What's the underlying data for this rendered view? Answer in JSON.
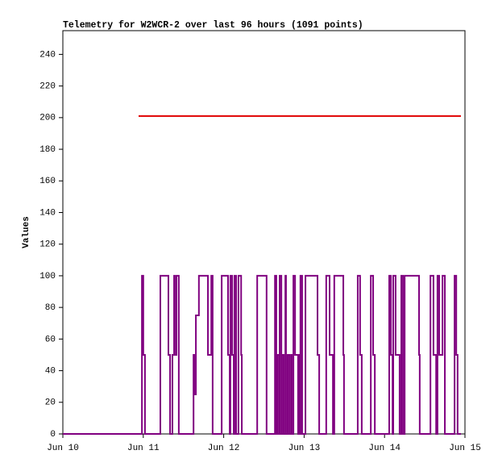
{
  "chart_data": {
    "type": "line",
    "step": "post",
    "title": "Telemetry for W2WCR-2 over last 96 hours (1091 points)",
    "y_label": "Values",
    "xlim": [
      0,
      120
    ],
    "xticks": [
      {
        "value": 0,
        "label": "Jun 10"
      },
      {
        "value": 24,
        "label": "Jun 11"
      },
      {
        "value": 48,
        "label": "Jun 12"
      },
      {
        "value": 72,
        "label": "Jun 13"
      },
      {
        "value": 96,
        "label": "Jun 14"
      },
      {
        "value": 120,
        "label": "Jun 15"
      }
    ],
    "ylim": [
      0,
      255
    ],
    "yticks": [
      0,
      20,
      40,
      60,
      80,
      100,
      120,
      140,
      160,
      180,
      200,
      220,
      240
    ],
    "series": [
      {
        "color": "#e00000",
        "x": [
          22.6,
          118.8
        ],
        "values": [
          201,
          201
        ]
      },
      {
        "color": "#800080",
        "x": [
          0,
          22.6,
          23.6,
          24.0,
          24.5,
          29.1,
          31.5,
          32.0,
          32.7,
          33.2,
          33.4,
          33.9,
          34.6,
          39.0,
          39.2,
          39.7,
          40.6,
          43.3,
          44.3,
          44.7,
          47.4,
          49.3,
          49.8,
          50.0,
          50.5,
          51.0,
          51.2,
          51.7,
          52.4,
          53.2,
          53.4,
          58.0,
          60.8,
          63.3,
          63.7,
          64.0,
          64.5,
          64.7,
          65.2,
          65.4,
          65.9,
          66.4,
          66.6,
          67.1,
          67.6,
          68.1,
          68.3,
          68.8,
          69.3,
          70.2,
          70.5,
          70.7,
          70.9,
          71.4,
          72.4,
          76.0,
          76.5,
          78.6,
          79.6,
          80.6,
          81.0,
          83.7,
          83.9,
          88.0,
          88.7,
          89.2,
          91.9,
          92.6,
          93.1,
          97.4,
          97.9,
          98.4,
          98.6,
          99.3,
          100.5,
          101.0,
          101.5,
          102.0,
          106.3,
          106.5,
          109.7,
          110.6,
          111.4,
          111.8,
          112.3,
          113.3,
          114.0,
          116.9,
          117.4,
          117.8,
          118.8
        ],
        "values": [
          0,
          0,
          100,
          50,
          0,
          100,
          50,
          0,
          50,
          100,
          50,
          100,
          0,
          50,
          25,
          75,
          100,
          50,
          100,
          0,
          100,
          50,
          0,
          100,
          50,
          0,
          100,
          0,
          100,
          50,
          0,
          100,
          0,
          100,
          0,
          50,
          0,
          100,
          0,
          50,
          0,
          100,
          0,
          50,
          0,
          50,
          0,
          100,
          50,
          0,
          50,
          0,
          100,
          0,
          100,
          50,
          0,
          100,
          50,
          0,
          100,
          50,
          0,
          100,
          50,
          0,
          100,
          50,
          0,
          100,
          50,
          0,
          100,
          50,
          0,
          100,
          0,
          100,
          50,
          0,
          100,
          50,
          0,
          100,
          50,
          100,
          0,
          100,
          50,
          0,
          0
        ]
      }
    ]
  }
}
